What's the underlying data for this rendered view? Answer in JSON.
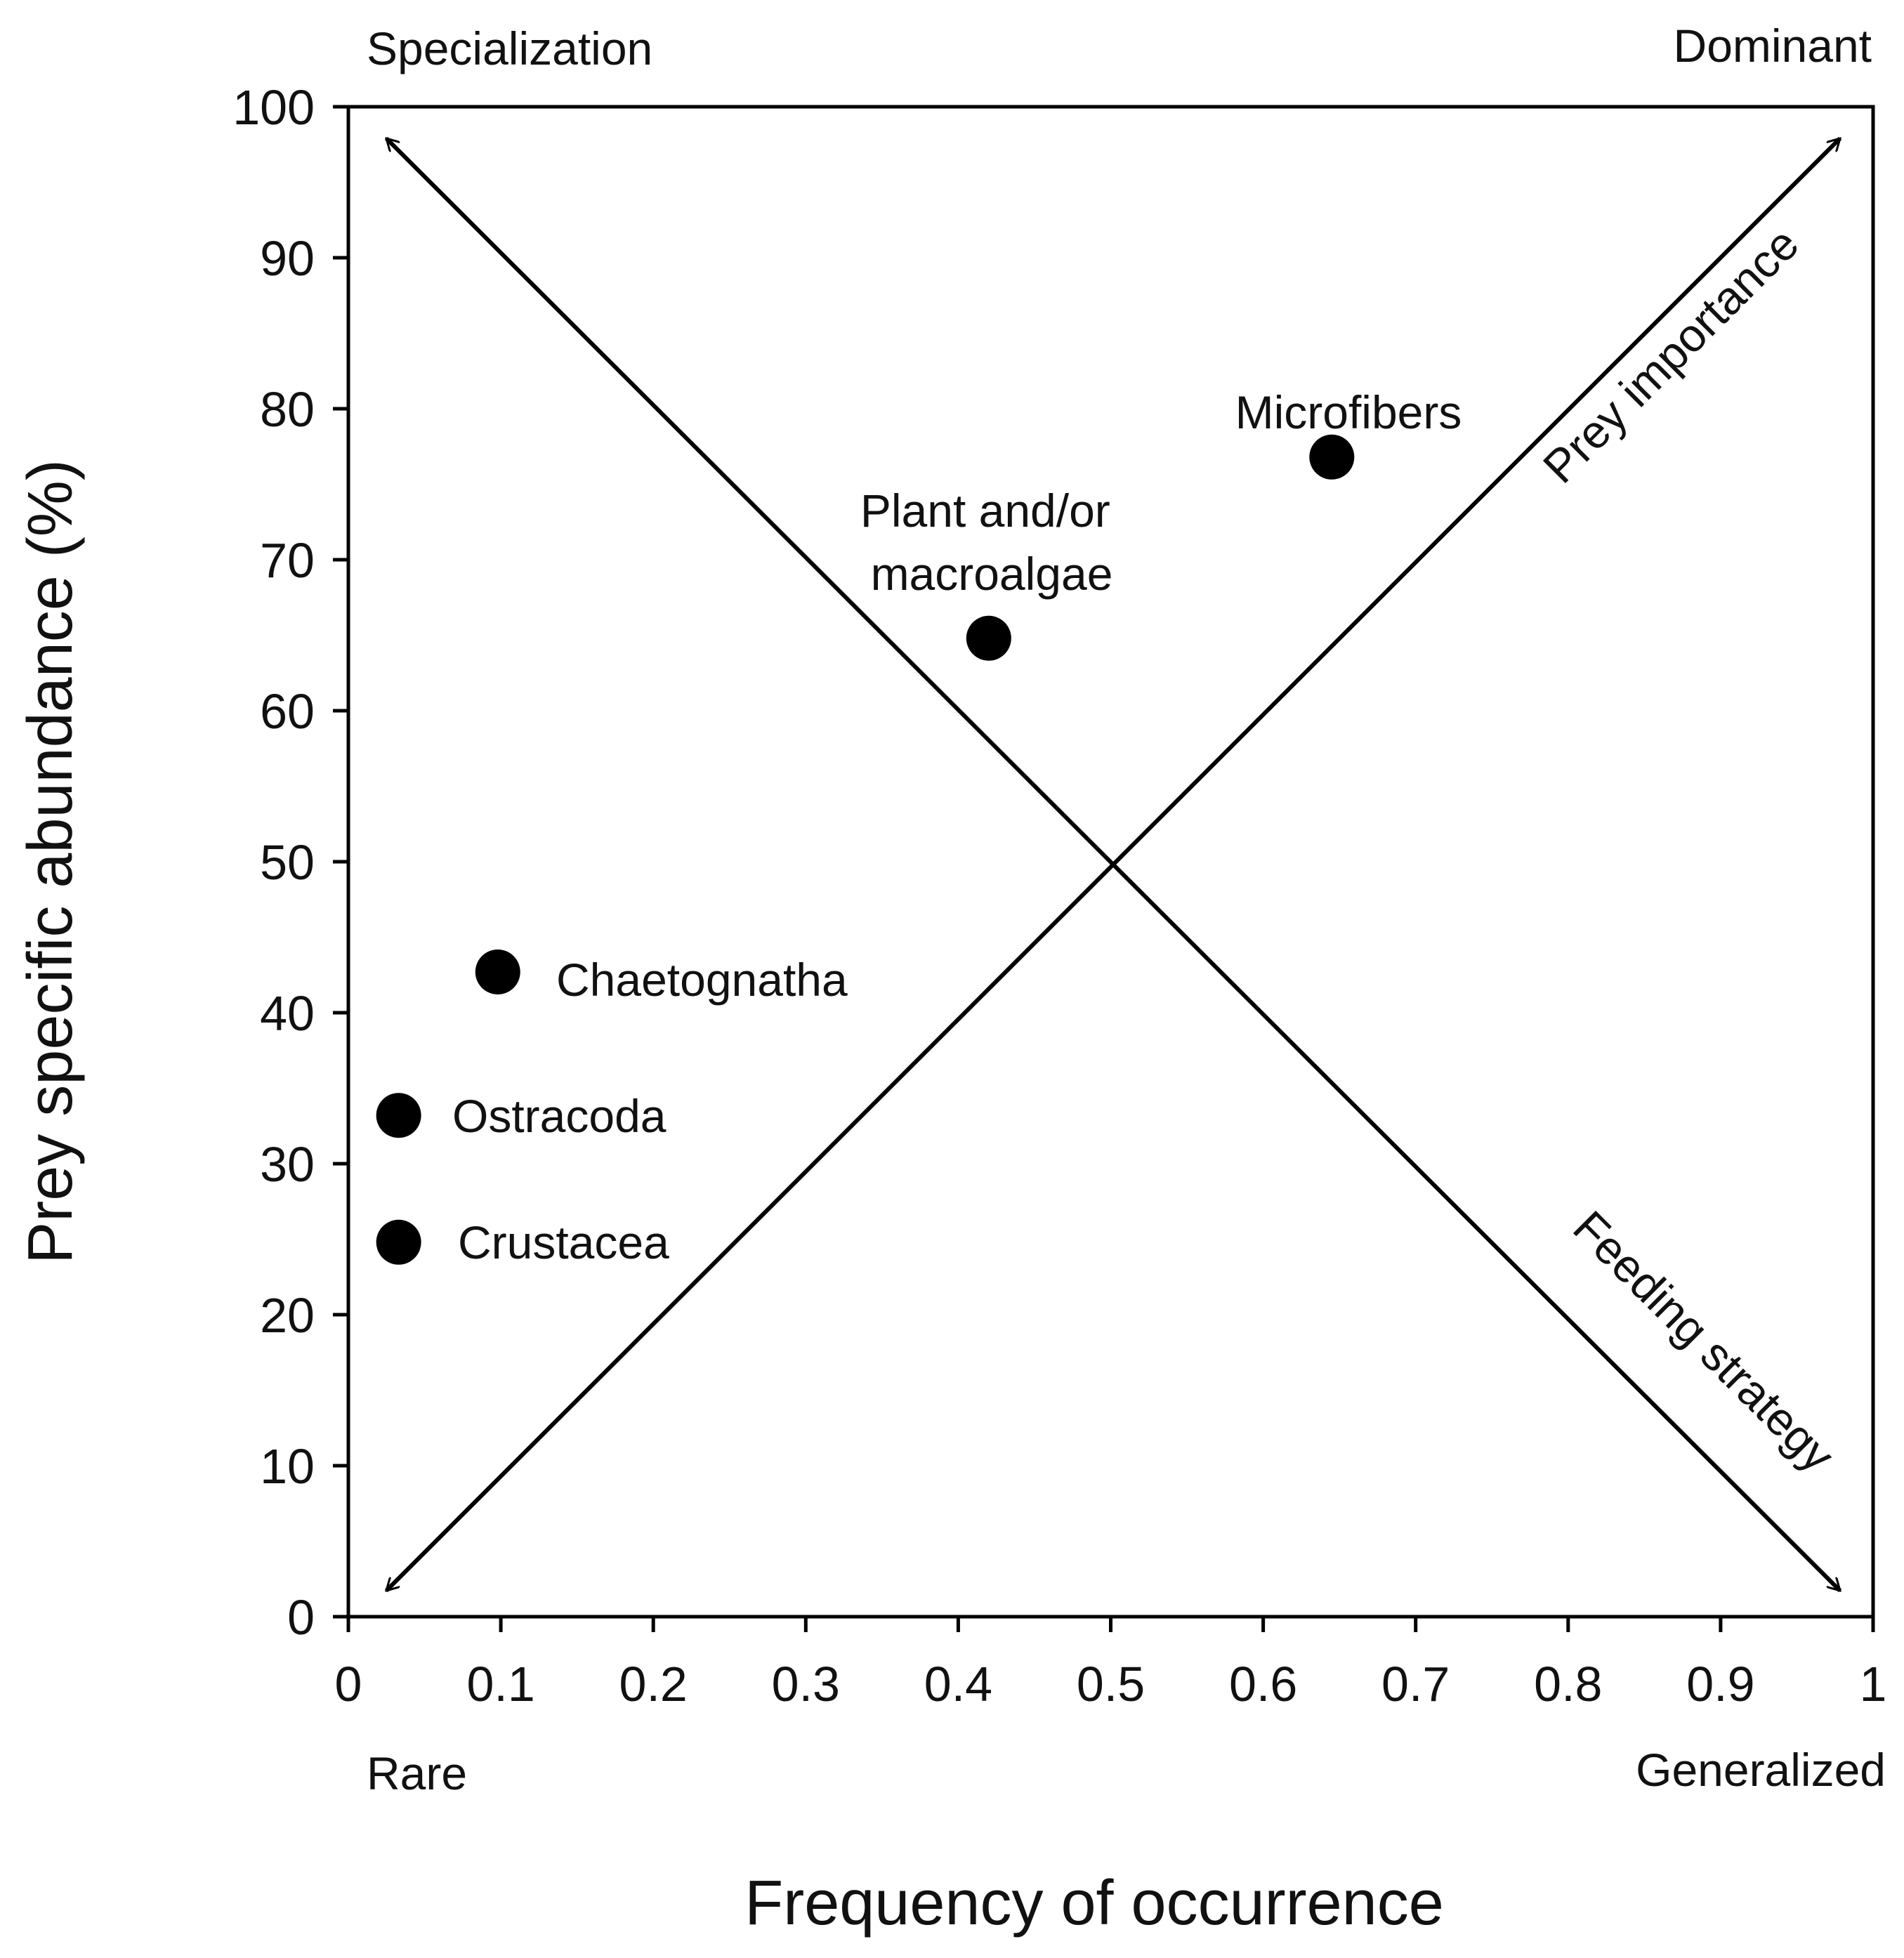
{
  "chart_data": {
    "type": "scatter",
    "title": "",
    "xlabel": "Frequency of occurrence",
    "ylabel": "Prey specific abundance (%)",
    "xlim": [
      0,
      1
    ],
    "ylim": [
      0,
      100
    ],
    "xticks": [
      0,
      0.1,
      0.2,
      0.3,
      0.4,
      0.5,
      0.6,
      0.7,
      0.8,
      0.9,
      1
    ],
    "xtick_labels": [
      "0",
      "0.1",
      "0.2",
      "0.3",
      "0.4",
      "0.5",
      "0.6",
      "0.7",
      "0.8",
      "0.9",
      "1"
    ],
    "yticks": [
      0,
      10,
      20,
      30,
      40,
      50,
      60,
      70,
      80,
      90,
      100
    ],
    "ytick_labels": [
      "0",
      "10",
      "20",
      "30",
      "40",
      "50",
      "60",
      "70",
      "80",
      "90",
      "100"
    ],
    "grid": false,
    "points": [
      {
        "label": "Microfibers",
        "x": 0.645,
        "y": 76.8
      },
      {
        "label_lines": [
          "Plant and/or",
          "macroalgae"
        ],
        "x": 0.42,
        "y": 64.8
      },
      {
        "label": "Chaetognatha",
        "x": 0.098,
        "y": 42.7
      },
      {
        "label": "Ostracoda",
        "x": 0.033,
        "y": 33.2
      },
      {
        "label": "Crustacea",
        "x": 0.033,
        "y": 24.8
      }
    ],
    "corner_labels": {
      "top_left": "Specialization",
      "top_right": "Dominant",
      "bottom_left": "Rare",
      "bottom_right": "Generalized"
    },
    "diagonal_labels": {
      "rising": "Prey importance",
      "falling": "Feeding strategy"
    },
    "colors": {
      "points": "#000000",
      "lines": "#000000",
      "text": "#111111"
    }
  }
}
